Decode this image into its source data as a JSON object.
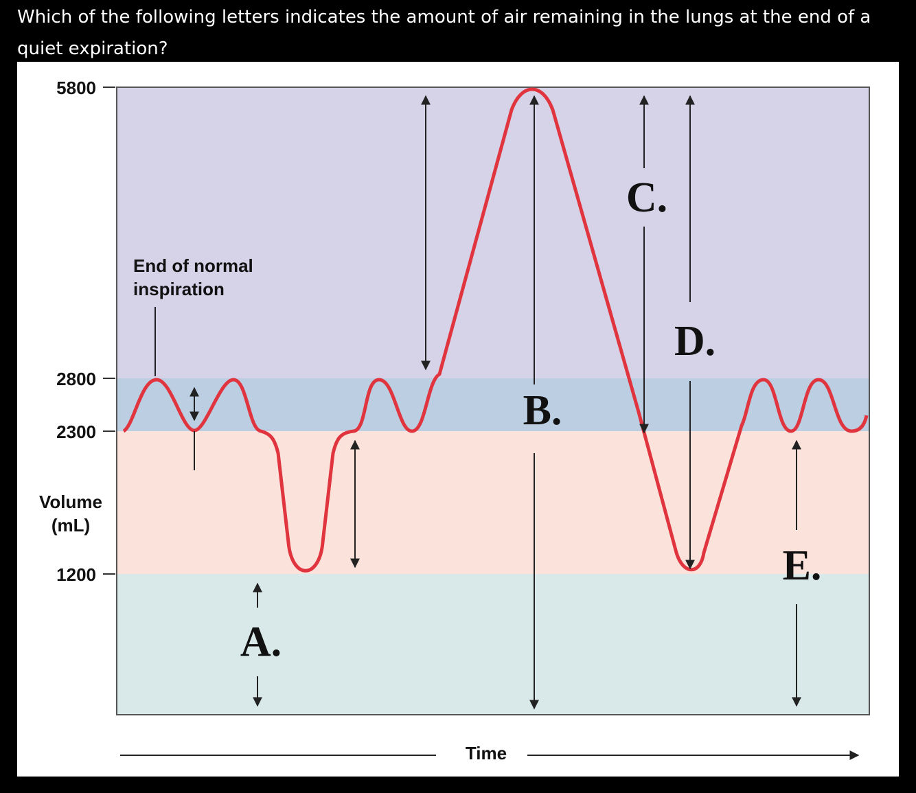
{
  "question": "Which of the following letters indicates the amount of air remaining in the lungs at the end of a quiet expiration?",
  "diagram": {
    "y_axis": {
      "label_lines": [
        "Volume",
        "(mL)"
      ],
      "ticks": [
        "5800",
        "2800",
        "2300",
        "1200"
      ]
    },
    "x_axis": {
      "label": "Time"
    },
    "annotation_lines": [
      "End of normal",
      "inspiration"
    ],
    "letters": [
      "A.",
      "B.",
      "C.",
      "D.",
      "E."
    ]
  }
}
